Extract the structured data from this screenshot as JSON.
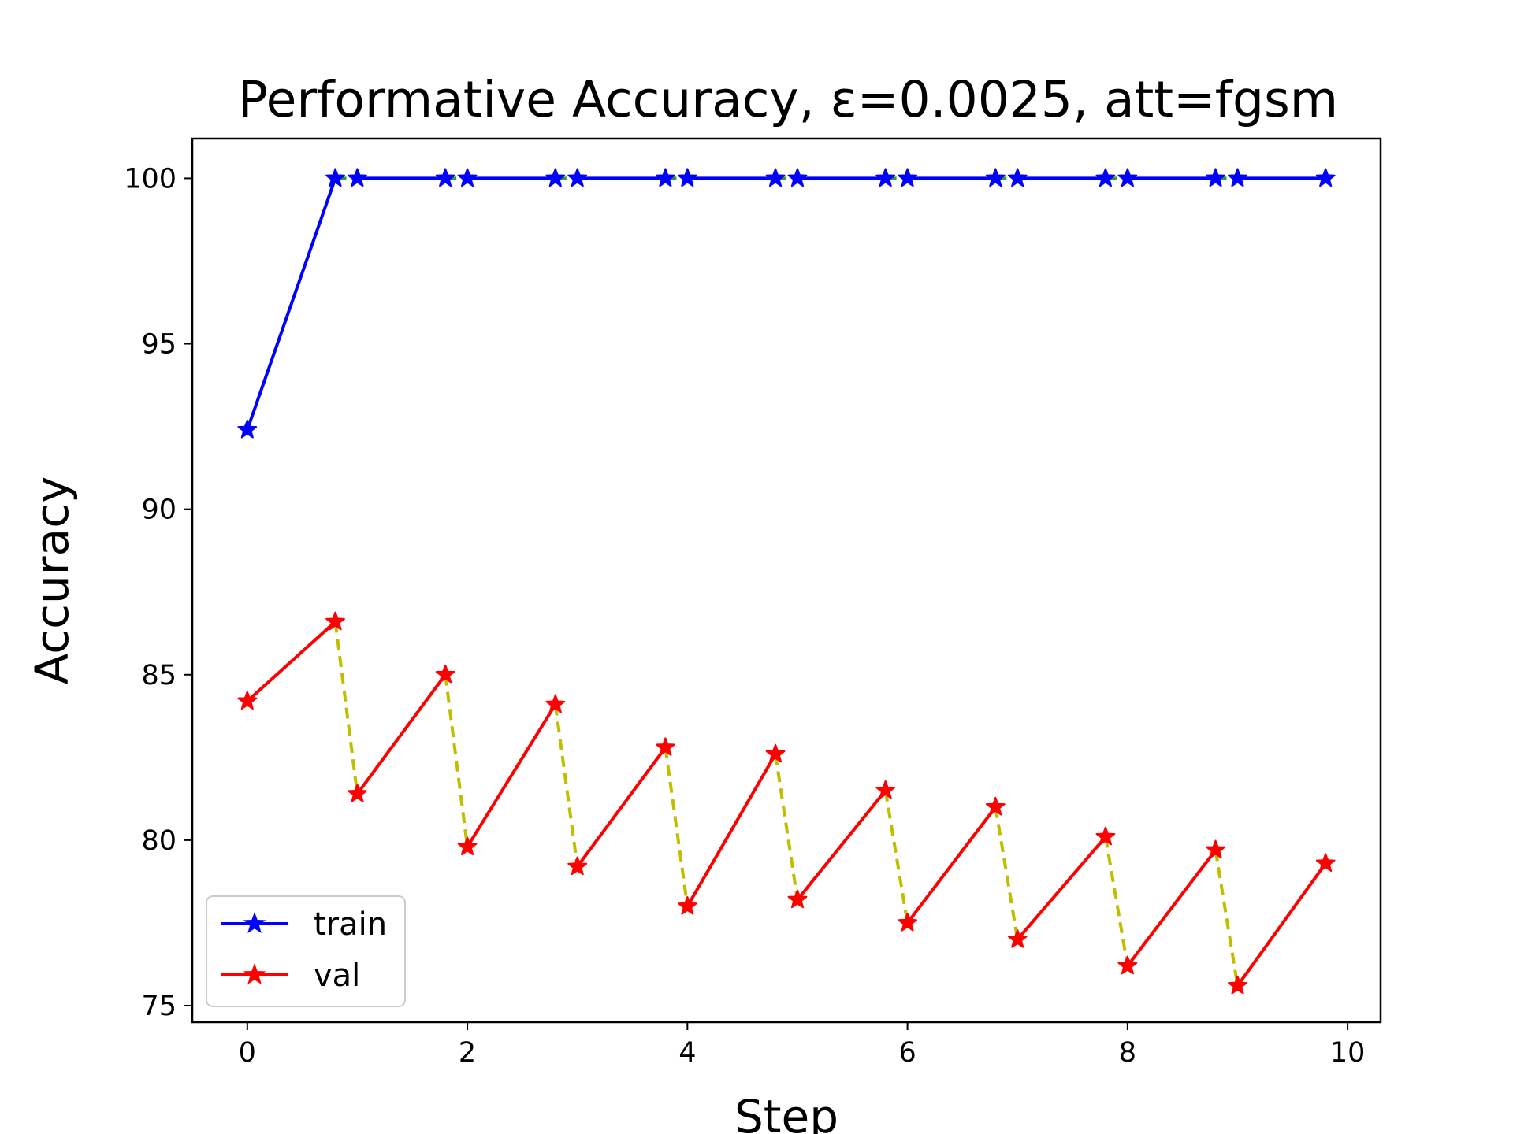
{
  "chart_data": {
    "type": "line",
    "title": "Performative Accuracy, ε=0.0025, att=fgsm",
    "xlabel": "Step",
    "ylabel": "Accuracy",
    "xlim": [
      -0.5,
      10.3
    ],
    "ylim": [
      74.5,
      101.2
    ],
    "xticks": [
      0,
      2,
      4,
      6,
      8,
      10
    ],
    "yticks": [
      75,
      80,
      85,
      90,
      95,
      100
    ],
    "grid": false,
    "legend_position": "lower-left",
    "colors": {
      "train": "#0000ff",
      "val": "#ff0000",
      "train_shift": "#2ca02c",
      "val_shift": "#bfbf00"
    },
    "series": [
      {
        "name": "train",
        "color": "#0000ff",
        "marker": "star",
        "points": [
          [
            0,
            92.4
          ],
          [
            0.8,
            100
          ],
          [
            1,
            100
          ],
          [
            1.8,
            100
          ],
          [
            2,
            100
          ],
          [
            2.8,
            100
          ],
          [
            3,
            100
          ],
          [
            3.8,
            100
          ],
          [
            4,
            100
          ],
          [
            4.8,
            100
          ],
          [
            5,
            100
          ],
          [
            5.8,
            100
          ],
          [
            6,
            100
          ],
          [
            6.8,
            100
          ],
          [
            7,
            100
          ],
          [
            7.8,
            100
          ],
          [
            8,
            100
          ],
          [
            8.8,
            100
          ],
          [
            9,
            100
          ],
          [
            9.8,
            100
          ]
        ]
      },
      {
        "name": "val",
        "color": "#ff0000",
        "marker": "star",
        "points": [
          [
            0,
            84.2
          ],
          [
            0.8,
            86.6
          ],
          [
            1,
            81.4
          ],
          [
            1.8,
            85.0
          ],
          [
            2,
            79.8
          ],
          [
            2.8,
            84.1
          ],
          [
            3,
            79.2
          ],
          [
            3.8,
            82.8
          ],
          [
            4,
            78.0
          ],
          [
            4.8,
            82.6
          ],
          [
            5,
            78.2
          ],
          [
            5.8,
            81.5
          ],
          [
            6,
            77.5
          ],
          [
            6.8,
            81.0
          ],
          [
            7,
            77.0
          ],
          [
            7.8,
            80.1
          ],
          [
            8,
            76.2
          ],
          [
            8.8,
            79.7
          ],
          [
            9,
            75.6
          ],
          [
            9.8,
            79.3
          ]
        ]
      }
    ]
  }
}
